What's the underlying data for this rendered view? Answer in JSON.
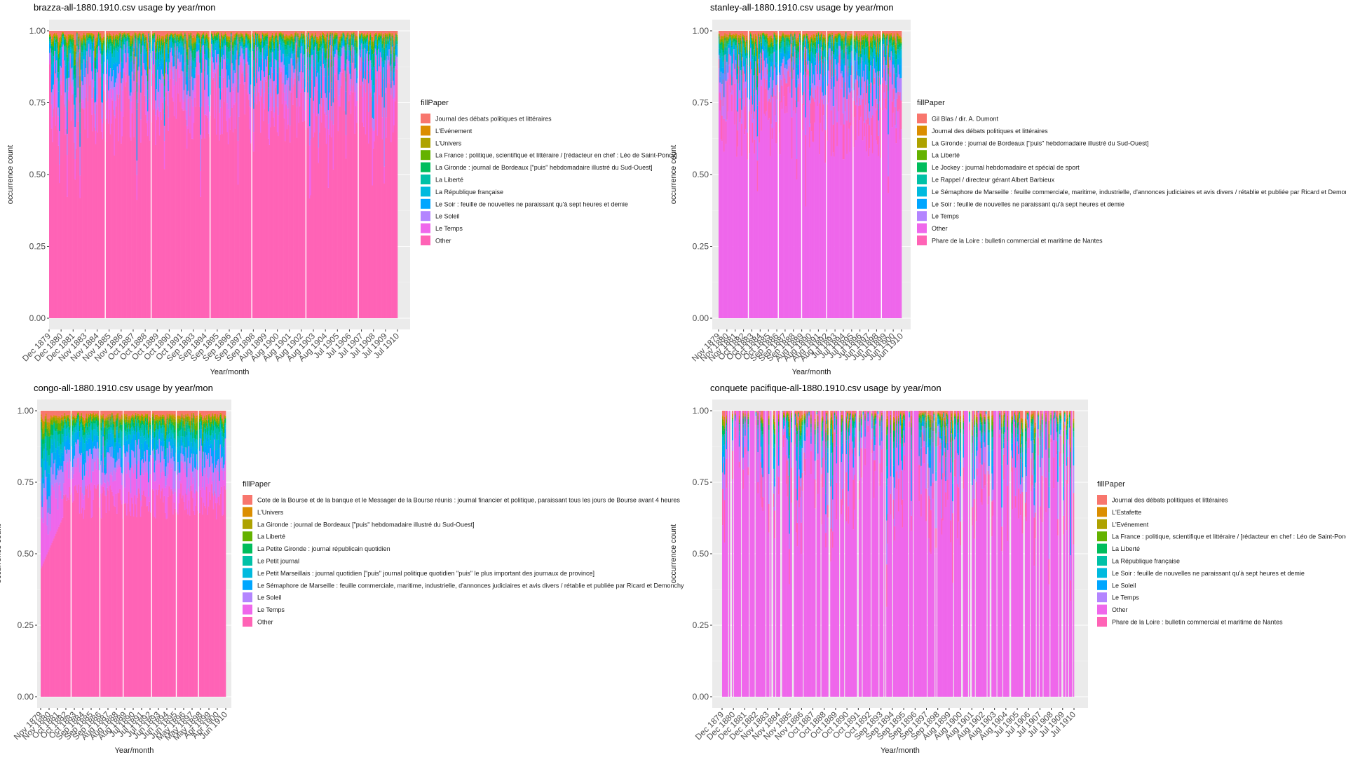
{
  "ylabel": "occurrence count",
  "xlabel_month": "Year/month",
  "xlabel_mon": "Year/mon",
  "legend_title": "fillPaper",
  "chart_data": [
    {
      "type": "bar",
      "stacked": "fill",
      "title": "brazza-all-1880.1910.csv usage by year/mon",
      "xlabel": "Year/month",
      "ylabel": "occurrence count",
      "y_ticks": [
        "0.00",
        "0.25",
        "0.50",
        "0.75",
        "1.00"
      ],
      "ylim": [
        0,
        1
      ],
      "x_ticks": [
        "Dec 1879",
        "Dec 1880",
        "Dec 1881",
        "Nov 1883",
        "Nov 1884",
        "Nov 1885",
        "Nov 1886",
        "Oct 1887",
        "Oct 1888",
        "Oct 1889",
        "Oct 1890",
        "Oct 1891",
        "Sep 1893",
        "Sep 1894",
        "Sep 1895",
        "Sep 1896",
        "Sep 1897",
        "Sep 1898",
        "Aug 1899",
        "Aug 1900",
        "Aug 1901",
        "Aug 1902",
        "Aug 1903",
        "Aug 1904",
        "Jul 1905",
        "Jul 1906",
        "Jul 1907",
        "Jul 1908",
        "Jul 1909",
        "Jul 1910"
      ],
      "legend_title": "fillPaper",
      "series": [
        {
          "name": "Journal des débats politiques et littéraires",
          "color": "#F8766D"
        },
        {
          "name": "L'Evénement",
          "color": "#DB8E00"
        },
        {
          "name": "L'Univers",
          "color": "#AEA200"
        },
        {
          "name": "La France : politique, scientifique et littéraire / [rédacteur en chef : Léo de Saint-Poncy]",
          "color": "#64B200"
        },
        {
          "name": "La Gironde : journal de Bordeaux [\"puis\" hebdomadaire illustré du Sud-Ouest]",
          "color": "#00BD5C"
        },
        {
          "name": "La Liberté",
          "color": "#00C1A7"
        },
        {
          "name": "La République française",
          "color": "#00BADE"
        },
        {
          "name": "Le Soir : feuille de nouvelles ne paraissant qu'à sept heures et demie",
          "color": "#00A6FF"
        },
        {
          "name": "Le Soleil",
          "color": "#B385FF"
        },
        {
          "name": "Le Temps",
          "color": "#EF67EB"
        },
        {
          "name": "Other",
          "color": "#FF63B6"
        }
      ],
      "dominant_series": "Other",
      "dominant_share_range": [
        0.6,
        0.92
      ]
    },
    {
      "type": "bar",
      "stacked": "fill",
      "title": "stanley-all-1880.1910.csv usage by year/mon",
      "xlabel": "Year/month",
      "ylabel": "occurrence count",
      "y_ticks": [
        "0.00",
        "0.25",
        "0.50",
        "0.75",
        "1.00"
      ],
      "ylim": [
        0,
        1
      ],
      "x_ticks": [
        "Nov 1879",
        "Nov 1880",
        "Nov 1881",
        "Oct 1882",
        "Oct 1883",
        "Oct 1884",
        "Oct 1885",
        "Sep 1886",
        "Sep 1887",
        "Sep 1888",
        "Aug 1889",
        "Aug 1890",
        "Aug 1891",
        "Aug 1892",
        "Jul 1893",
        "Jul 1894",
        "Jul 1895",
        "Jul 1896",
        "Jun 1897",
        "Jun 1898",
        "Jun 1899",
        "Jun 1900",
        "Jun 1910"
      ],
      "legend_title": "fillPaper",
      "series": [
        {
          "name": "Gil Blas / dir. A. Dumont",
          "color": "#F8766D"
        },
        {
          "name": "Journal des débats politiques et littéraires",
          "color": "#DB8E00"
        },
        {
          "name": "La Gironde : journal de Bordeaux [\"puis\" hebdomadaire illustré du Sud-Ouest]",
          "color": "#AEA200"
        },
        {
          "name": "La Liberté",
          "color": "#64B200"
        },
        {
          "name": "Le Jockey : journal hebdomadaire et spécial de sport",
          "color": "#00BD5C"
        },
        {
          "name": "Le Rappel / directeur gérant Albert Barbieux",
          "color": "#00C1A7"
        },
        {
          "name": "Le Sémaphore de Marseille : feuille commerciale, maritime, industrielle, d'annonces judiciaires et avis divers / rétablie et publiée par Ricard et Demonchy",
          "color": "#00BADE"
        },
        {
          "name": "Le Soir : feuille de nouvelles ne paraissant qu'à sept heures et demie",
          "color": "#00A6FF"
        },
        {
          "name": "Le Temps",
          "color": "#B385FF"
        },
        {
          "name": "Other",
          "color": "#EF67EB"
        },
        {
          "name": "Phare de la Loire : bulletin commercial et maritime de Nantes",
          "color": "#FF63B6"
        }
      ],
      "dominant_series": "Other",
      "dominant_share_range": [
        0.55,
        0.9
      ]
    },
    {
      "type": "bar",
      "stacked": "fill",
      "title": "congo-all-1880.1910.csv usage by year/mon",
      "xlabel": "Year/month",
      "ylabel": "occurrence count",
      "y_ticks": [
        "0.00",
        "0.25",
        "0.50",
        "0.75",
        "1.00"
      ],
      "ylim": [
        0,
        1
      ],
      "x_ticks": [
        "Nov 1879",
        "Nov 1880",
        "Oct 1881",
        "Oct 1882",
        "Oct 1883",
        "Sep 1884",
        "Sep 1885",
        "Sep 1886",
        "Aug 1887",
        "Aug 1888",
        "Aug 1889",
        "Jul 1890",
        "Jul 1891",
        "Jul 1892",
        "Jun 1893",
        "Jun 1894",
        "Jun 1895",
        "May 1896",
        "May 1897",
        "May 1898",
        "Apr 1899",
        "Apr 1900",
        "Jun 1910"
      ],
      "legend_title": "fillPaper",
      "series": [
        {
          "name": "Cote de la Bourse et de la banque et le Messager de la Bourse réunis : journal financier et politique, paraissant tous les jours de Bourse avant 4 heures",
          "color": "#F8766D"
        },
        {
          "name": "L'Univers",
          "color": "#DB8E00"
        },
        {
          "name": "La Gironde : journal de Bordeaux [\"puis\" hebdomadaire illustré du Sud-Ouest]",
          "color": "#AEA200"
        },
        {
          "name": "La Liberté",
          "color": "#64B200"
        },
        {
          "name": "La Petite Gironde : journal républicain quotidien",
          "color": "#00BD5C"
        },
        {
          "name": "Le Petit journal",
          "color": "#00C1A7"
        },
        {
          "name": "Le Petit Marseillais : journal quotidien [\"puis\" journal politique quotidien \"puis\" le plus important des journaux de province]",
          "color": "#00BADE"
        },
        {
          "name": "Le Sémaphore de Marseille : feuille commerciale, maritime, industrielle, d'annonces judiciaires et avis divers / rétablie et publiée par Ricard et Demonchy",
          "color": "#00A6FF"
        },
        {
          "name": "Le Soleil",
          "color": "#B385FF"
        },
        {
          "name": "Le Temps",
          "color": "#EF67EB"
        },
        {
          "name": "Other",
          "color": "#FF63B6"
        }
      ],
      "dominant_series": "Other",
      "dominant_share_range": [
        0.42,
        0.75
      ]
    },
    {
      "type": "bar",
      "stacked": "fill",
      "title": "conquete pacifique-all-1880.1910.csv usage by year/mon",
      "xlabel": "Year/month",
      "ylabel": "occurrence count",
      "y_ticks": [
        "0.00",
        "0.25",
        "0.50",
        "0.75",
        "1.00"
      ],
      "ylim": [
        0,
        1
      ],
      "x_ticks": [
        "Dec 1879",
        "Dec 1880",
        "Dec 1881",
        "Dec 1882",
        "Nov 1883",
        "Nov 1884",
        "Nov 1885",
        "Nov 1886",
        "Oct 1887",
        "Oct 1888",
        "Oct 1889",
        "Oct 1890",
        "Oct 1891",
        "Oct 1892",
        "Sep 1893",
        "Sep 1894",
        "Sep 1895",
        "Sep 1896",
        "Sep 1897",
        "Sep 1898",
        "Aug 1899",
        "Aug 1900",
        "Aug 1901",
        "Aug 1902",
        "Aug 1903",
        "Aug 1904",
        "Jul 1905",
        "Jul 1906",
        "Jul 1907",
        "Jul 1908",
        "Jul 1909",
        "Jul 1910"
      ],
      "legend_title": "fillPaper",
      "series": [
        {
          "name": "Journal des débats politiques et littéraires",
          "color": "#F8766D"
        },
        {
          "name": "L'Estafette",
          "color": "#DB8E00"
        },
        {
          "name": "L'Evénement",
          "color": "#AEA200"
        },
        {
          "name": "La France : politique, scientifique et littéraire / [rédacteur en chef : Léo de Saint-Poncy]",
          "color": "#64B200"
        },
        {
          "name": "La Liberté",
          "color": "#00BD5C"
        },
        {
          "name": "La République française",
          "color": "#00C1A7"
        },
        {
          "name": "Le Soir : feuille de nouvelles ne paraissant qu'à sept heures et demie",
          "color": "#00BADE"
        },
        {
          "name": "Le Soleil",
          "color": "#00A6FF"
        },
        {
          "name": "Le Temps",
          "color": "#B385FF"
        },
        {
          "name": "Other",
          "color": "#EF67EB"
        },
        {
          "name": "Phare de la Loire : bulletin commercial et maritime de Nantes",
          "color": "#FF63B6"
        }
      ],
      "dominant_series": "Other",
      "dominant_share_range": [
        0.5,
        1.0
      ]
    }
  ]
}
